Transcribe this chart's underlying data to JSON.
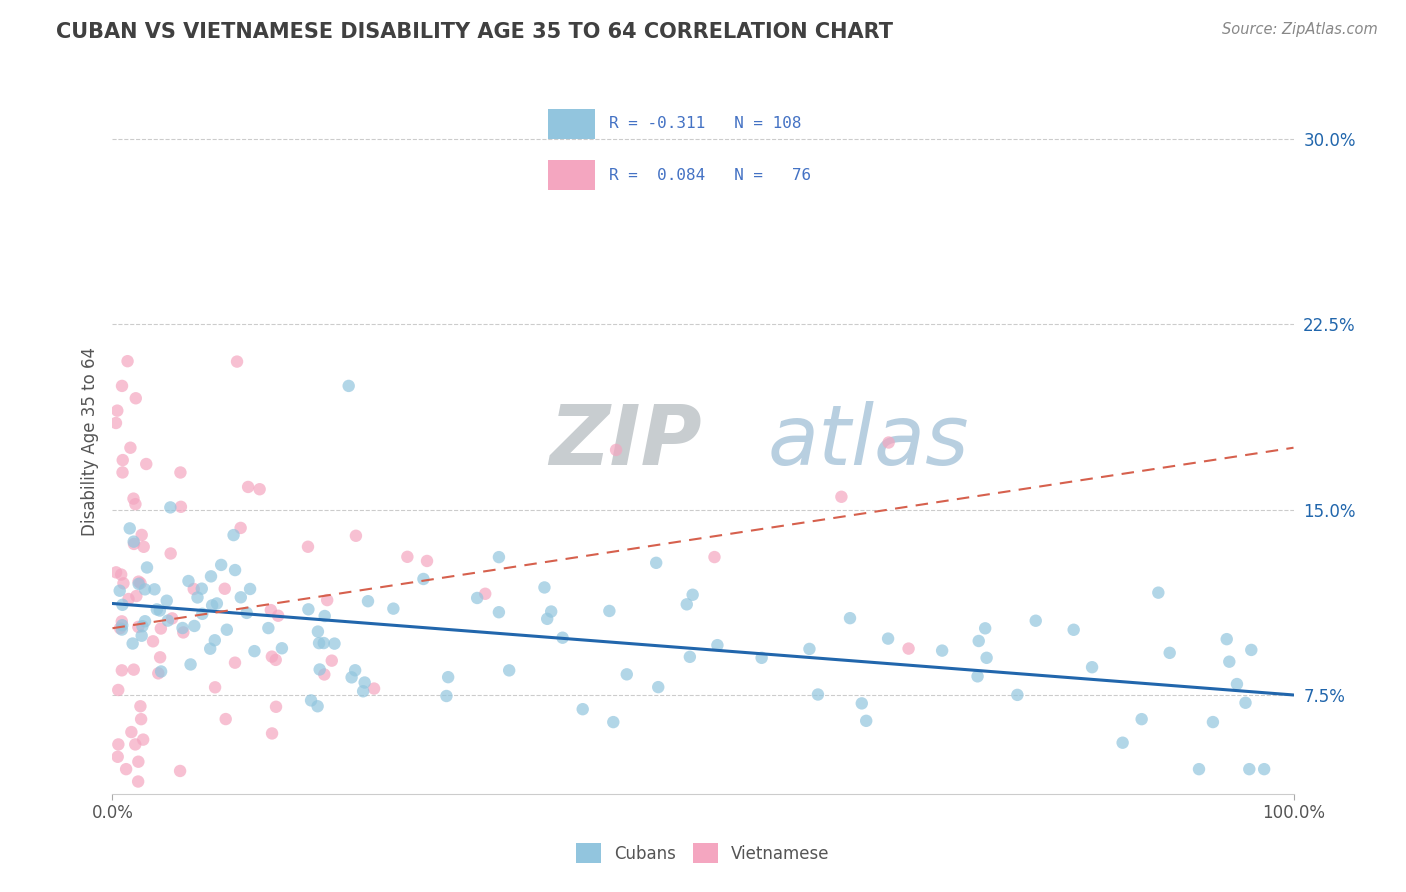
{
  "title": "CUBAN VS VIETNAMESE DISABILITY AGE 35 TO 64 CORRELATION CHART",
  "source_text": "Source: ZipAtlas.com",
  "ylabel": "Disability Age 35 to 64",
  "xlabel": "",
  "xlim": [
    0,
    100
  ],
  "ylim": [
    3.5,
    32
  ],
  "xtick_labels": [
    "0.0%",
    "100.0%"
  ],
  "xtick_positions": [
    0,
    100
  ],
  "ytick_labels": [
    "7.5%",
    "15.0%",
    "22.5%",
    "30.0%"
  ],
  "ytick_positions": [
    7.5,
    15.0,
    22.5,
    30.0
  ],
  "cubans_R": -0.311,
  "cubans_N": 108,
  "vietnamese_R": 0.084,
  "vietnamese_N": 76,
  "cuban_color": "#92c5de",
  "vietnamese_color": "#f4a6c0",
  "cuban_line_color": "#2166ac",
  "vietnamese_line_color": "#d6604d",
  "background_color": "#ffffff",
  "grid_color": "#cccccc",
  "title_color": "#404040",
  "legend_text_color": "#4472c4",
  "watermark": "ZIPatlas",
  "watermark_color": "#dce8f0",
  "cuban_line_start_y": 11.2,
  "cuban_line_end_y": 7.5,
  "viet_line_start_y": 10.2,
  "viet_line_end_y": 17.5
}
